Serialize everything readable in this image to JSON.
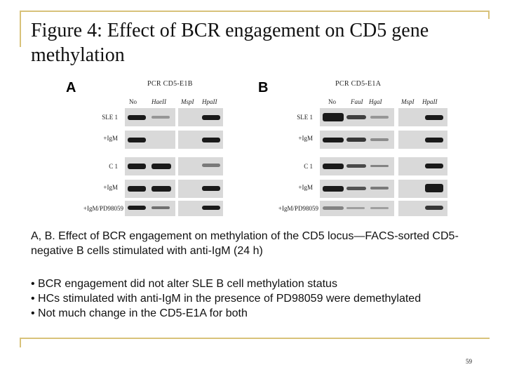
{
  "slide": {
    "title": "Figure 4: Effect of BCR engagement on CD5 gene methylation",
    "page_number": "59"
  },
  "figure": {
    "panel_a": {
      "letter": "A",
      "pcr_label": "PCR CD5-E1B",
      "lanes": [
        "No",
        "HaeII",
        "MspI",
        "HpaII"
      ],
      "rows": [
        "SLE 1",
        "+IgM",
        "C 1",
        "+IgM",
        "+IgM/PD98059"
      ]
    },
    "panel_b": {
      "letter": "B",
      "pcr_label": "PCR CD5-E1A",
      "lanes": [
        "No",
        "FauI",
        "HgaI",
        "MspI",
        "HpaII"
      ],
      "rows": [
        "SLE 1",
        "+IgM",
        "C 1",
        "+IgM",
        "+IgM/PD98059"
      ]
    }
  },
  "caption": "A, B. Effect of BCR engagement on methylation of the CD5 locus—FACS-sorted CD5-negative B cells stimulated with anti-IgM (24 h)",
  "bullets": [
    "• BCR engagement did not alter SLE B cell methylation status",
    "• HCs stimulated with anti-IgM in the presence of PD98059 were demethylated",
    "• Not much change in the CD5-E1A for both"
  ]
}
